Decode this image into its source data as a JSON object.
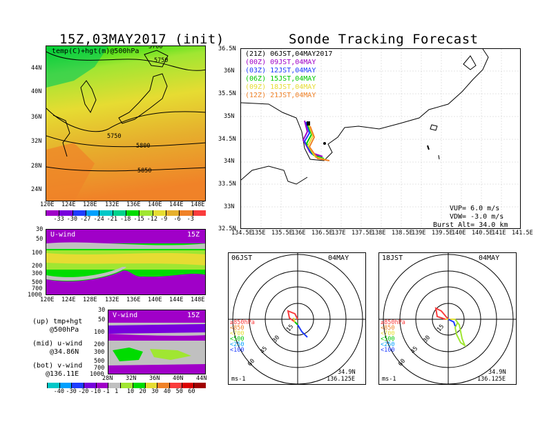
{
  "left_title": "15Z,03MAY2017 (init)",
  "right_title": "Sonde Tracking Forecast",
  "temp_map": {
    "label": "temp(C)+hgt(m)@500hPa",
    "contour_labels": [
      "5700",
      "5750",
      "5750",
      "5800",
      "5850"
    ],
    "lat_ticks": [
      "44N",
      "40N",
      "36N",
      "32N",
      "28N",
      "24N"
    ],
    "lon_ticks": [
      "120E",
      "124E",
      "128E",
      "132E",
      "136E",
      "140E",
      "144E",
      "148E"
    ]
  },
  "temp_colorbar": {
    "labels": [
      "-33",
      "-30",
      "-27",
      "-24",
      "-21",
      "-18",
      "-15",
      "-12",
      "-9",
      "-6",
      "-3"
    ],
    "colors": [
      "#a000c8",
      "#7800dc",
      "#1e3cff",
      "#00a0ff",
      "#00c8c8",
      "#00d28c",
      "#00dc00",
      "#a0e632",
      "#e6dc32",
      "#e6af2d",
      "#f08228",
      "#fa3c3c"
    ]
  },
  "uwind": {
    "label": "U-wind",
    "time": "15Z",
    "p_ticks": [
      "30",
      "50",
      "100",
      "200",
      "300",
      "500",
      "700",
      "1000"
    ],
    "lon_ticks": [
      "120E",
      "124E",
      "128E",
      "132E",
      "136E",
      "140E",
      "144E",
      "148E"
    ]
  },
  "vwind": {
    "label": "V-wind",
    "time": "15Z",
    "p_ticks": [
      "30",
      "50",
      "100",
      "200",
      "300",
      "500",
      "700",
      "1000"
    ],
    "lat_ticks": [
      "28N",
      "32N",
      "36N",
      "40N",
      "44N"
    ]
  },
  "notes": [
    {
      "line1": "(up) tmp+hgt",
      "line2": "@500hPa"
    },
    {
      "line1": "(mid) u-wind",
      "line2": "@34.86N"
    },
    {
      "line1": "(bot) v-wind",
      "line2": "@136.11E"
    }
  ],
  "wind_colorbar": {
    "labels": [
      "-40",
      "-30",
      "-20",
      "-10",
      "-1",
      "1",
      "10",
      "20",
      "30",
      "40",
      "50",
      "60"
    ],
    "colors": [
      "#00c8c8",
      "#00a0ff",
      "#1e3cff",
      "#7800dc",
      "#a000c8",
      "#c0c0c0",
      "#a0e632",
      "#00dc00",
      "#e6dc32",
      "#f08228",
      "#fa3c3c",
      "#dc0000",
      "#a00000"
    ]
  },
  "track_map": {
    "legend": [
      {
        "text": "(21Z) 06JST,04MAY2017",
        "color": "#000000"
      },
      {
        "text": "(00Z) 09JST,04MAY",
        "color": "#a000c8"
      },
      {
        "text": "(03Z) 12JST,04MAY",
        "color": "#1e3cff"
      },
      {
        "text": "(06Z) 15JST,04MAY",
        "color": "#00c800"
      },
      {
        "text": "(09Z) 18JST,04MAY",
        "color": "#e6dc32"
      },
      {
        "text": "(12Z) 21JST,04MAY",
        "color": "#f08228"
      }
    ],
    "lat_ticks": [
      "36.5N",
      "36N",
      "35.5N",
      "35N",
      "34.5N",
      "34N",
      "33.5N",
      "33N",
      "32.5N"
    ],
    "lon_ticks": [
      "134.5E",
      "135E",
      "135.5E",
      "136E",
      "136.5E",
      "137E",
      "137.5E",
      "138E",
      "138.5E",
      "139E",
      "139.5E",
      "140E",
      "140.5E",
      "141E",
      "141.5E"
    ],
    "params": [
      "VUP= 6.0 m/s",
      "VDW= -3.0 m/s",
      "Burst Alt= 34.0 km"
    ]
  },
  "hodographs": [
    {
      "time": "06JST",
      "date": "04MAY",
      "rings": [
        "15",
        "30",
        "45",
        "60"
      ],
      "levels": [
        {
          "text": "≥850hPa",
          "color": "#fa3c3c"
        },
        {
          "text": "<850",
          "color": "#f08228"
        },
        {
          "text": "<700",
          "color": "#e6dc32"
        },
        {
          "text": "<500",
          "color": "#00c800"
        },
        {
          "text": "<250",
          "color": "#00a0ff"
        },
        {
          "text": "<100",
          "color": "#1e3cff"
        }
      ],
      "units": "ms-1",
      "lat": "34.9N",
      "lon": "136.125E"
    },
    {
      "time": "18JST",
      "date": "04MAY",
      "rings": [
        "15",
        "30",
        "45",
        "60"
      ],
      "levels": [
        {
          "text": "≥850hPa",
          "color": "#fa3c3c"
        },
        {
          "text": "<850",
          "color": "#f08228"
        },
        {
          "text": "<700",
          "color": "#e6dc32"
        },
        {
          "text": "<500",
          "color": "#00c800"
        },
        {
          "text": "<250",
          "color": "#00a0ff"
        },
        {
          "text": "<100",
          "color": "#1e3cff"
        }
      ],
      "units": "ms-1",
      "lat": "34.9N",
      "lon": "136.125E"
    }
  ]
}
